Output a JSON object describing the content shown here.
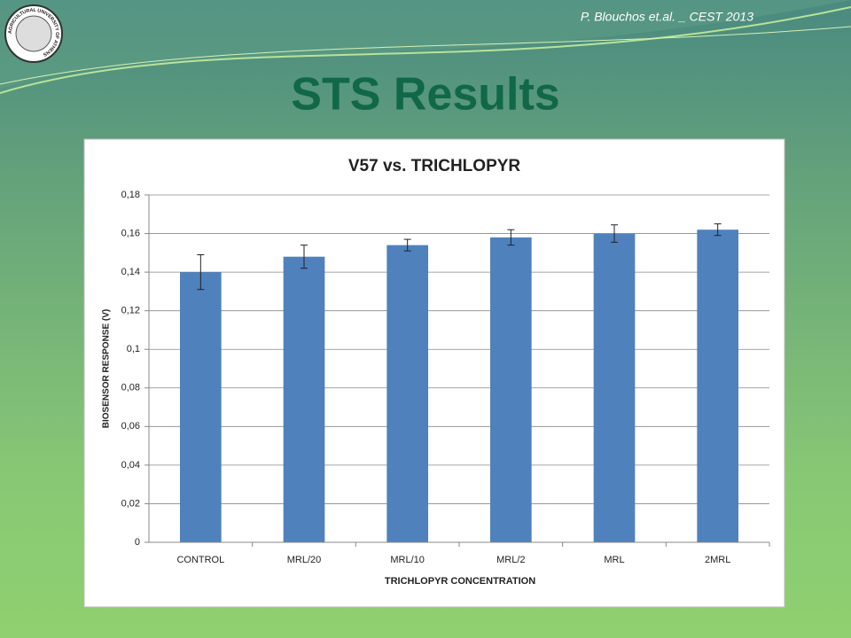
{
  "header": {
    "credit": "P. Blouchos et.al. _ CEST 2013",
    "title": "STS Results",
    "logo_text": "AGRICULTURAL UNIVERSITY OF ATHENS"
  },
  "chart_data": {
    "type": "bar",
    "title": "V57 vs. TRICHLOPYR",
    "x_label": "TRICHLOPYR CONCENTRATION",
    "y_label": "BIOSENSOR RESPONSE (V)",
    "categories": [
      "CONTROL",
      "MRL/20",
      "MRL/10",
      "MRL/2",
      "MRL",
      "2MRL"
    ],
    "values": [
      0.14,
      0.148,
      0.154,
      0.158,
      0.16,
      0.162
    ],
    "errors": [
      0.009,
      0.006,
      0.003,
      0.004,
      0.0045,
      0.003
    ],
    "color": "#4f81bd",
    "ylim": [
      0,
      0.18
    ],
    "yticks": [
      0,
      {
        "value": 0.02,
        "label": "0,02"
      },
      {
        "value": 0.04,
        "label": "0,04"
      },
      {
        "value": 0.06,
        "label": "0,06"
      },
      {
        "value": 0.08,
        "label": "0,08"
      },
      {
        "value": 0.1,
        "label": "0,1"
      },
      {
        "value": 0.12,
        "label": "0,12"
      },
      {
        "value": 0.14,
        "label": "0,14"
      },
      {
        "value": 0.16,
        "label": "0,16"
      },
      {
        "value": 0.18,
        "label": "0,18"
      }
    ],
    "grid": true
  }
}
